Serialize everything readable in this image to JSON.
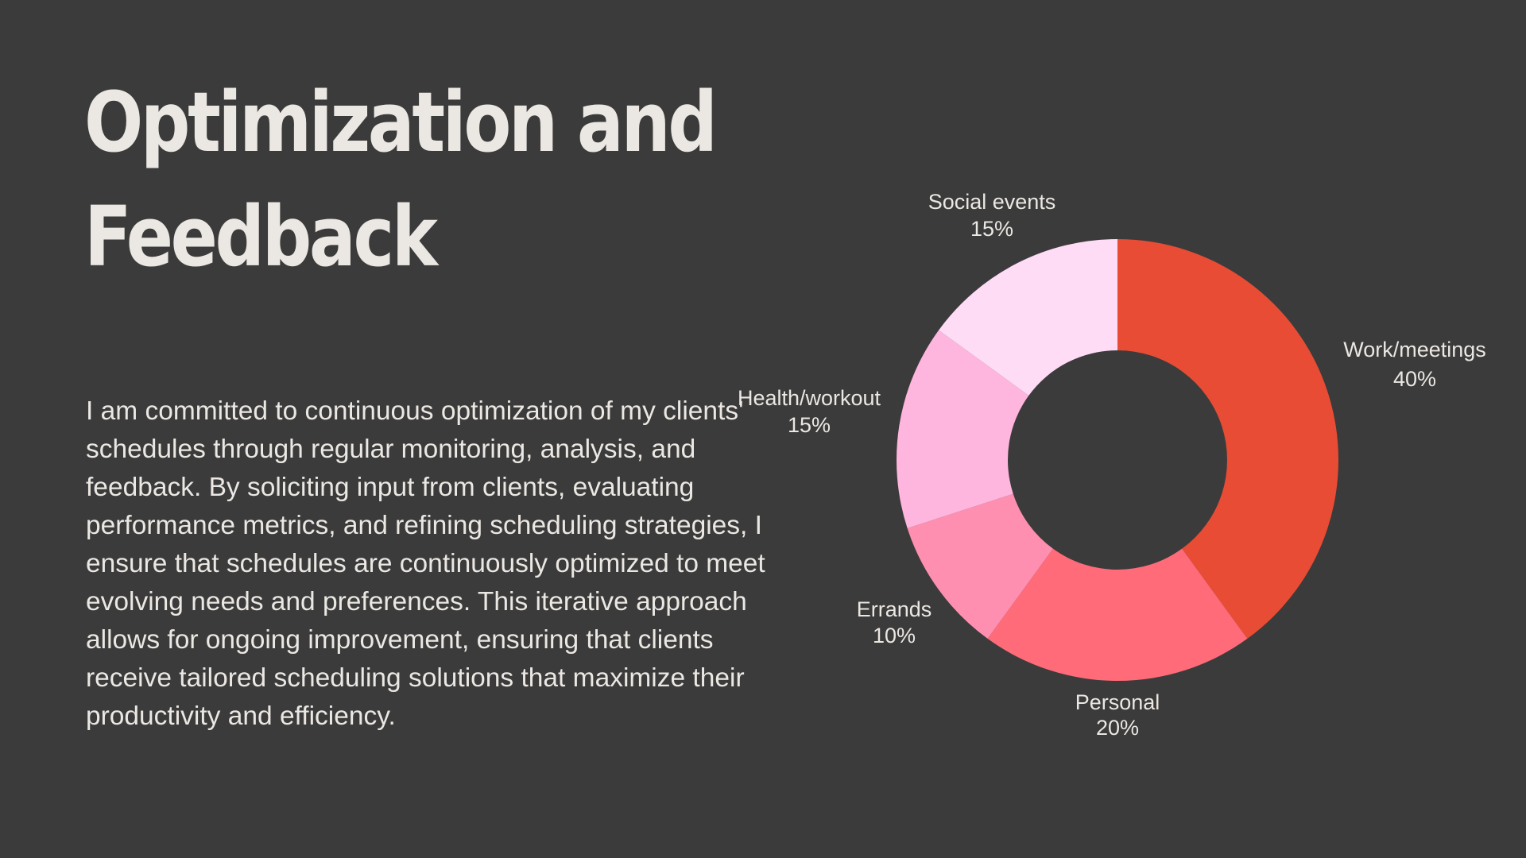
{
  "title": {
    "line1": "Optimization and",
    "line2": "Feedback"
  },
  "body": "I am committed to continuous optimization of my clients' schedules through regular monitoring, analysis, and feedback. By soliciting input from clients, evaluating performance metrics, and refining scheduling strategies, I ensure that schedules are continuously optimized to meet evolving needs and preferences. This iterative approach allows for ongoing improvement, ensuring that clients receive tailored scheduling solutions that maximize their productivity and efficiency.",
  "chart_data": {
    "type": "pie",
    "variant": "donut",
    "title": "",
    "start_angle_deg": 0,
    "direction": "clockwise",
    "slices": [
      {
        "label": "Work/meetings",
        "value": 40,
        "display": "40%",
        "color": "#e84c34"
      },
      {
        "label": "Personal",
        "value": 20,
        "display": "20%",
        "color": "#ff6b78"
      },
      {
        "label": "Errands",
        "value": 10,
        "display": "10%",
        "color": "#ff8fb1"
      },
      {
        "label": "Health/workout",
        "value": 15,
        "display": "15%",
        "color": "#ffb6de"
      },
      {
        "label": "Social events",
        "value": 15,
        "display": "15%",
        "color": "#ffdcf6"
      }
    ]
  }
}
